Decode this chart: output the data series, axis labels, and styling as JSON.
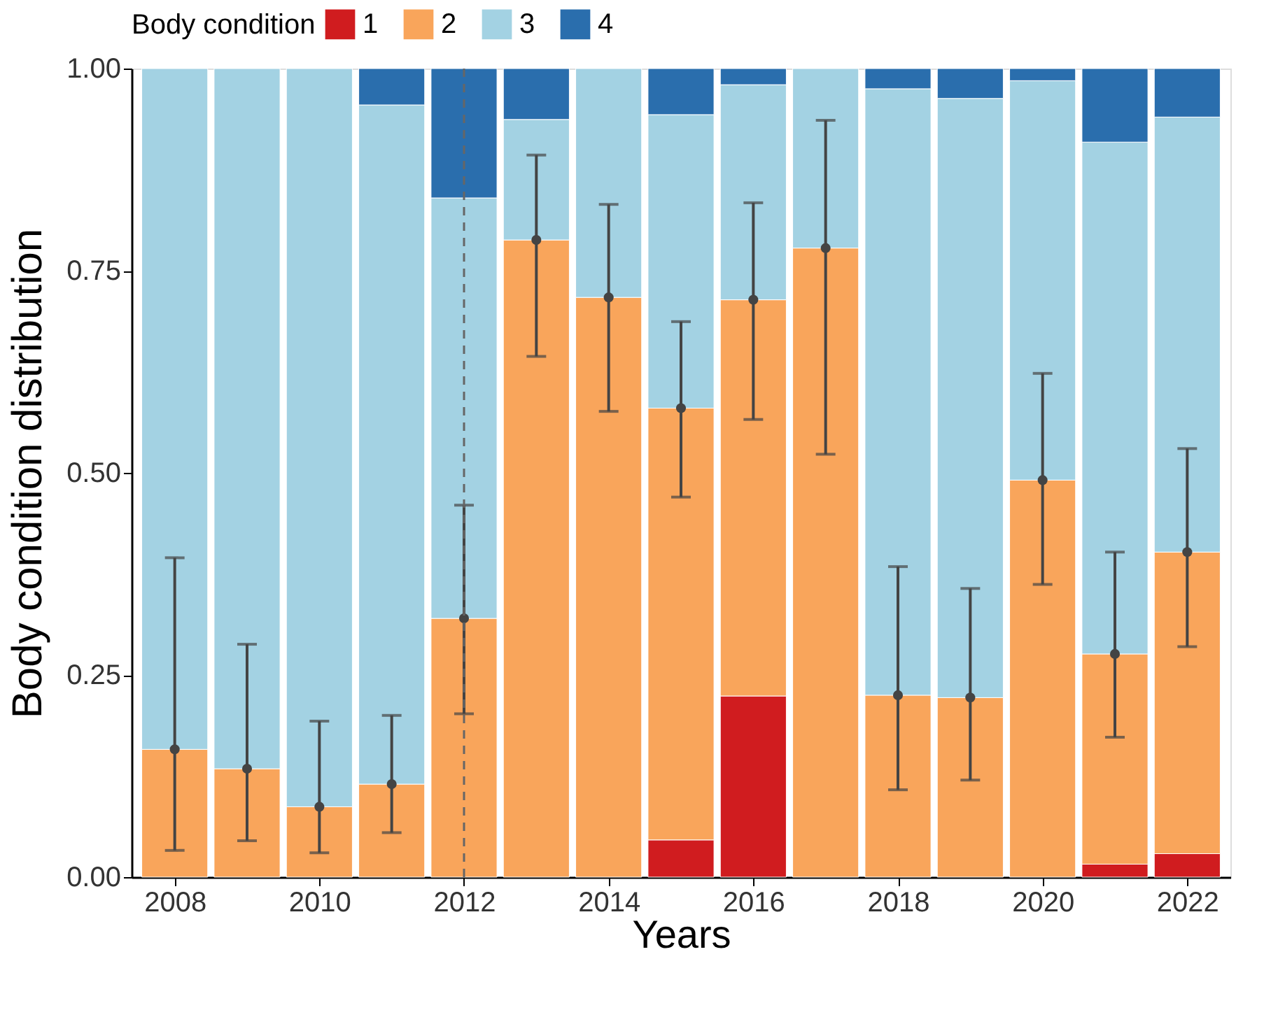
{
  "chart_data": {
    "type": "bar",
    "stacked": true,
    "xlabel": "Years",
    "ylabel": "Body condition distribution",
    "legend_title": "Body condition",
    "legend": "top",
    "x": [
      2008,
      2009,
      2010,
      2011,
      2012,
      2013,
      2014,
      2015,
      2016,
      2017,
      2018,
      2019,
      2020,
      2021,
      2022
    ],
    "xlim": [
      2007.5,
      2022.5
    ],
    "xticks": [
      2008,
      2010,
      2012,
      2014,
      2016,
      2018,
      2020,
      2022
    ],
    "ylim": [
      0,
      1
    ],
    "yticks": [
      {
        "value": 0,
        "label": "0.00"
      },
      {
        "value": 0.25,
        "label": "0.25"
      },
      {
        "value": 0.5,
        "label": "0.50"
      },
      {
        "value": 0.75,
        "label": "0.75"
      },
      {
        "value": 1,
        "label": "1.00"
      }
    ],
    "grid": false,
    "series": [
      {
        "name": "1",
        "color": "#d01c1f",
        "values": [
          null,
          null,
          null,
          null,
          null,
          null,
          null,
          0.046,
          0.224,
          null,
          null,
          null,
          null,
          0.016,
          0.029
        ]
      },
      {
        "name": "2",
        "color": "#f9a55b",
        "values": [
          0.158,
          0.134,
          0.087,
          0.115,
          0.32,
          0.788,
          0.717,
          0.534,
          0.49,
          0.778,
          0.225,
          0.222,
          0.491,
          0.26,
          0.373
        ]
      },
      {
        "name": "3",
        "color": "#a3d2e3",
        "values": [
          0.842,
          0.866,
          0.913,
          0.84,
          0.52,
          0.149,
          0.283,
          0.363,
          0.266,
          0.222,
          0.75,
          0.741,
          0.494,
          0.633,
          0.538
        ]
      },
      {
        "name": "4",
        "color": "#2a6ead",
        "values": [
          null,
          null,
          null,
          0.045,
          0.16,
          0.063,
          null,
          0.057,
          0.02,
          null,
          0.025,
          0.037,
          0.015,
          0.091,
          0.06
        ]
      },
      {
        "type": "scatter",
        "color": "#444444",
        "marker": "circle",
        "x": [
          2008,
          2009,
          2010,
          2011,
          2012,
          2013,
          2014,
          2015,
          2016,
          2017,
          2018,
          2019,
          2020,
          2021,
          2022
        ],
        "values": [
          0.158,
          0.134,
          0.087,
          0.115,
          0.32,
          0.788,
          0.717,
          0.58,
          0.714,
          0.778,
          0.225,
          0.222,
          0.491,
          0.276,
          0.402
        ],
        "errors": [
          [
            0.033,
            0.395
          ],
          [
            0.045,
            0.288
          ],
          [
            0.03,
            0.193
          ],
          [
            0.055,
            0.2
          ],
          [
            0.202,
            0.46
          ],
          [
            0.644,
            0.893
          ],
          [
            0.576,
            0.832
          ],
          [
            0.47,
            0.687
          ],
          [
            0.566,
            0.834
          ],
          [
            0.523,
            0.936
          ],
          [
            0.108,
            0.384
          ],
          [
            0.12,
            0.357
          ],
          [
            0.362,
            0.623
          ],
          [
            0.173,
            0.402
          ],
          [
            0.285,
            0.53
          ]
        ]
      }
    ],
    "ref_lines": [
      {
        "axis": "x",
        "value": 2012,
        "color": "#666666",
        "line_style": "dashed"
      }
    ]
  }
}
